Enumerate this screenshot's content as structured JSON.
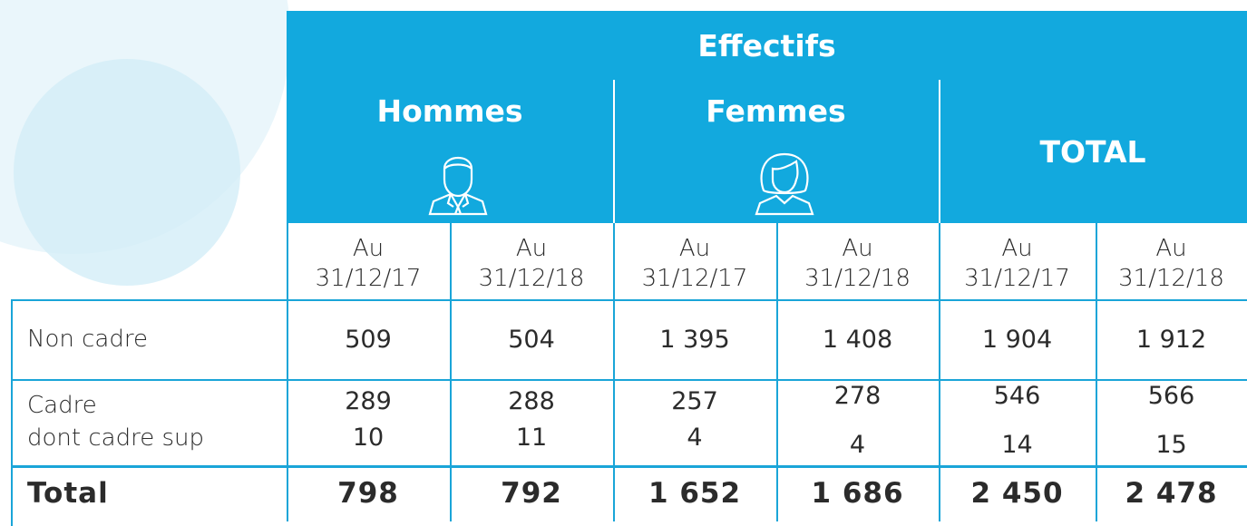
{
  "table": {
    "title": "Effectifs",
    "groups": [
      "Hommes",
      "Femmes",
      "TOTAL"
    ],
    "columns": [
      {
        "prefix": "Au",
        "date": "31/12/17"
      },
      {
        "prefix": "Au",
        "date": "31/12/18"
      },
      {
        "prefix": "Au",
        "date": "31/12/17"
      },
      {
        "prefix": "Au",
        "date": "31/12/18"
      },
      {
        "prefix": "Au",
        "date": "31/12/17"
      },
      {
        "prefix": "Au",
        "date": "31/12/18"
      }
    ],
    "rows": [
      {
        "label": "Non cadre",
        "values": [
          "509",
          "504",
          "1 395",
          "1 408",
          "1 904",
          "1 912"
        ]
      },
      {
        "label": "Cadre",
        "sublabel": "dont cadre sup",
        "values": [
          "289",
          "288",
          "257",
          "278",
          "546",
          "566"
        ],
        "subvalues": [
          "10",
          "11",
          "4",
          "4",
          "14",
          "15"
        ]
      },
      {
        "label": "Total",
        "values": [
          "798",
          "792",
          "1 652",
          "1 686",
          "2 450",
          "2 478"
        ]
      }
    ]
  }
}
